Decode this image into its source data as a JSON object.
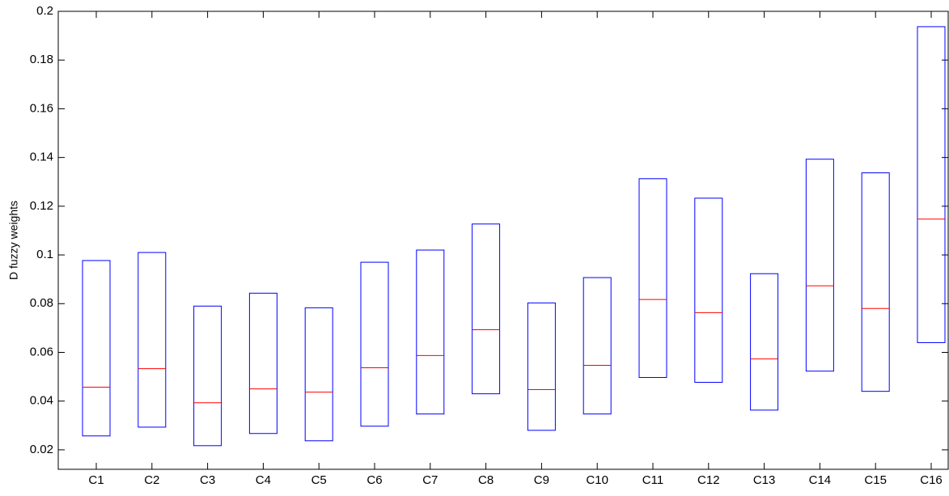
{
  "chart_data": {
    "type": "box",
    "ylabel": "D fuzzy weights",
    "categories": [
      "C1",
      "C2",
      "C3",
      "C4",
      "C5",
      "C6",
      "C7",
      "C8",
      "C9",
      "C10",
      "C11",
      "C12",
      "C13",
      "C14",
      "C15",
      "C16"
    ],
    "low": [
      0.0257,
      0.0293,
      0.0217,
      0.0267,
      0.0237,
      0.0297,
      0.0347,
      0.043,
      0.028,
      0.0347,
      0.0497,
      0.0477,
      0.0363,
      0.0523,
      0.044,
      0.064
    ],
    "median": [
      0.0457,
      0.0533,
      0.0393,
      0.045,
      0.0437,
      0.0537,
      0.0587,
      0.0693,
      0.0447,
      0.0547,
      0.0817,
      0.0763,
      0.0573,
      0.0873,
      0.078,
      0.1147
    ],
    "high": [
      0.0977,
      0.101,
      0.079,
      0.0843,
      0.0783,
      0.097,
      0.102,
      0.1127,
      0.0803,
      0.0907,
      0.1313,
      0.1233,
      0.0923,
      0.1393,
      0.1337,
      0.1937
    ],
    "box_color": "#0000ff",
    "median_color": "#ff0000",
    "ylim": [
      0.012,
      0.2
    ],
    "yticks": [
      0.02,
      0.04,
      0.06,
      0.08,
      0.1,
      0.12,
      0.14,
      0.16,
      0.18,
      0.2
    ]
  }
}
